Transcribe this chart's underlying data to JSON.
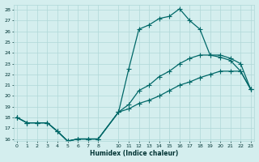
{
  "xlabel": "Humidex (Indice chaleur)",
  "bg_color": "#d4eeee",
  "grid_color": "#b0d8d8",
  "line_color": "#006868",
  "xlim": [
    0,
    23
  ],
  "ylim": [
    16,
    28
  ],
  "xticks": [
    0,
    1,
    2,
    3,
    4,
    5,
    6,
    7,
    8,
    10,
    11,
    12,
    13,
    14,
    15,
    16,
    17,
    18,
    19,
    20,
    21,
    22,
    23
  ],
  "yticks": [
    16,
    17,
    18,
    19,
    20,
    21,
    22,
    23,
    24,
    25,
    26,
    27,
    28
  ],
  "x": [
    0,
    1,
    2,
    3,
    4,
    5,
    6,
    7,
    8,
    10,
    11,
    12,
    13,
    14,
    15,
    16,
    17,
    18,
    19,
    20,
    21,
    22,
    23
  ],
  "line1_y": [
    18.0,
    17.5,
    17.5,
    17.5,
    16.7,
    15.8,
    16.0,
    16.0,
    16.0,
    18.5,
    22.5,
    26.2,
    26.6,
    27.2,
    27.4,
    28.1,
    27.0,
    26.2,
    23.8,
    23.6,
    23.3,
    22.3,
    20.6
  ],
  "line2_y": [
    18.0,
    17.5,
    17.5,
    17.5,
    16.7,
    15.8,
    16.0,
    16.0,
    16.0,
    18.5,
    19.2,
    20.5,
    21.0,
    21.8,
    22.3,
    23.0,
    23.5,
    23.8,
    23.8,
    23.8,
    23.5,
    23.0,
    20.6
  ],
  "line3_y": [
    18.0,
    17.5,
    17.5,
    17.5,
    16.7,
    15.8,
    16.0,
    16.0,
    16.0,
    18.5,
    18.8,
    19.3,
    19.6,
    20.0,
    20.5,
    21.0,
    21.3,
    21.7,
    22.0,
    22.3,
    22.3,
    22.3,
    20.6
  ]
}
